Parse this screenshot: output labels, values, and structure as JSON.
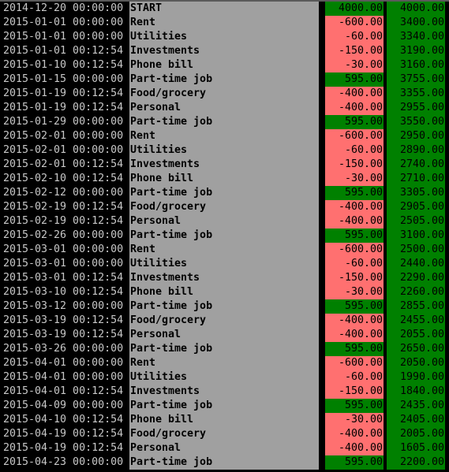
{
  "colors": {
    "background": "#000000",
    "description_bg": "#a0a0a0",
    "positive_bg": "#008000",
    "negative_bg": "#ff7070",
    "date_text": "#c8c8c8"
  },
  "ledger": [
    {
      "date": "2014-12-20 00:00:00",
      "description": "START",
      "amount": "4000.00",
      "balance": "4000.00",
      "sign": "pos"
    },
    {
      "date": "2015-01-01 00:00:00",
      "description": "Rent",
      "amount": "-600.00",
      "balance": "3400.00",
      "sign": "neg"
    },
    {
      "date": "2015-01-01 00:00:00",
      "description": "Utilities",
      "amount": "-60.00",
      "balance": "3340.00",
      "sign": "neg"
    },
    {
      "date": "2015-01-01 00:12:54",
      "description": "Investments",
      "amount": "-150.00",
      "balance": "3190.00",
      "sign": "neg"
    },
    {
      "date": "2015-01-10 00:12:54",
      "description": "Phone bill",
      "amount": "-30.00",
      "balance": "3160.00",
      "sign": "neg"
    },
    {
      "date": "2015-01-15 00:00:00",
      "description": "Part-time job",
      "amount": "595.00",
      "balance": "3755.00",
      "sign": "pos"
    },
    {
      "date": "2015-01-19 00:12:54",
      "description": "Food/grocery",
      "amount": "-400.00",
      "balance": "3355.00",
      "sign": "neg"
    },
    {
      "date": "2015-01-19 00:12:54",
      "description": "Personal",
      "amount": "-400.00",
      "balance": "2955.00",
      "sign": "neg"
    },
    {
      "date": "2015-01-29 00:00:00",
      "description": "Part-time job",
      "amount": "595.00",
      "balance": "3550.00",
      "sign": "pos"
    },
    {
      "date": "2015-02-01 00:00:00",
      "description": "Rent",
      "amount": "-600.00",
      "balance": "2950.00",
      "sign": "neg"
    },
    {
      "date": "2015-02-01 00:00:00",
      "description": "Utilities",
      "amount": "-60.00",
      "balance": "2890.00",
      "sign": "neg"
    },
    {
      "date": "2015-02-01 00:12:54",
      "description": "Investments",
      "amount": "-150.00",
      "balance": "2740.00",
      "sign": "neg"
    },
    {
      "date": "2015-02-10 00:12:54",
      "description": "Phone bill",
      "amount": "-30.00",
      "balance": "2710.00",
      "sign": "neg"
    },
    {
      "date": "2015-02-12 00:00:00",
      "description": "Part-time job",
      "amount": "595.00",
      "balance": "3305.00",
      "sign": "pos"
    },
    {
      "date": "2015-02-19 00:12:54",
      "description": "Food/grocery",
      "amount": "-400.00",
      "balance": "2905.00",
      "sign": "neg"
    },
    {
      "date": "2015-02-19 00:12:54",
      "description": "Personal",
      "amount": "-400.00",
      "balance": "2505.00",
      "sign": "neg"
    },
    {
      "date": "2015-02-26 00:00:00",
      "description": "Part-time job",
      "amount": "595.00",
      "balance": "3100.00",
      "sign": "pos"
    },
    {
      "date": "2015-03-01 00:00:00",
      "description": "Rent",
      "amount": "-600.00",
      "balance": "2500.00",
      "sign": "neg"
    },
    {
      "date": "2015-03-01 00:00:00",
      "description": "Utilities",
      "amount": "-60.00",
      "balance": "2440.00",
      "sign": "neg"
    },
    {
      "date": "2015-03-01 00:12:54",
      "description": "Investments",
      "amount": "-150.00",
      "balance": "2290.00",
      "sign": "neg"
    },
    {
      "date": "2015-03-10 00:12:54",
      "description": "Phone bill",
      "amount": "-30.00",
      "balance": "2260.00",
      "sign": "neg"
    },
    {
      "date": "2015-03-12 00:00:00",
      "description": "Part-time job",
      "amount": "595.00",
      "balance": "2855.00",
      "sign": "pos"
    },
    {
      "date": "2015-03-19 00:12:54",
      "description": "Food/grocery",
      "amount": "-400.00",
      "balance": "2455.00",
      "sign": "neg"
    },
    {
      "date": "2015-03-19 00:12:54",
      "description": "Personal",
      "amount": "-400.00",
      "balance": "2055.00",
      "sign": "neg"
    },
    {
      "date": "2015-03-26 00:00:00",
      "description": "Part-time job",
      "amount": "595.00",
      "balance": "2650.00",
      "sign": "pos"
    },
    {
      "date": "2015-04-01 00:00:00",
      "description": "Rent",
      "amount": "-600.00",
      "balance": "2050.00",
      "sign": "neg"
    },
    {
      "date": "2015-04-01 00:00:00",
      "description": "Utilities",
      "amount": "-60.00",
      "balance": "1990.00",
      "sign": "neg"
    },
    {
      "date": "2015-04-01 00:12:54",
      "description": "Investments",
      "amount": "-150.00",
      "balance": "1840.00",
      "sign": "neg"
    },
    {
      "date": "2015-04-09 00:00:00",
      "description": "Part-time job",
      "amount": "595.00",
      "balance": "2435.00",
      "sign": "pos"
    },
    {
      "date": "2015-04-10 00:12:54",
      "description": "Phone bill",
      "amount": "-30.00",
      "balance": "2405.00",
      "sign": "neg"
    },
    {
      "date": "2015-04-19 00:12:54",
      "description": "Food/grocery",
      "amount": "-400.00",
      "balance": "2005.00",
      "sign": "neg"
    },
    {
      "date": "2015-04-19 00:12:54",
      "description": "Personal",
      "amount": "-400.00",
      "balance": "1605.00",
      "sign": "neg"
    },
    {
      "date": "2015-04-23 00:00:00",
      "description": "Part-time job",
      "amount": "595.00",
      "balance": "2200.00",
      "sign": "pos"
    }
  ]
}
